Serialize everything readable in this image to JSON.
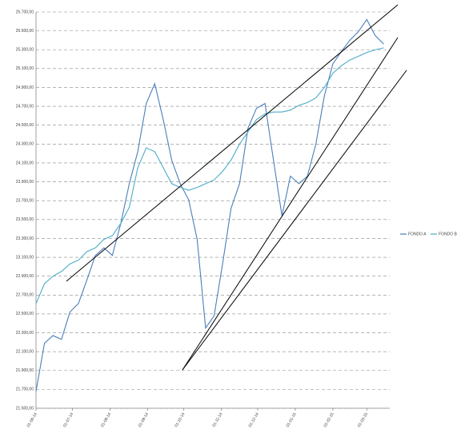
{
  "chart_data": {
    "type": "line",
    "x": [
      "2014-06-01",
      "2014-06-08",
      "2014-06-15",
      "2014-06-22",
      "2014-06-29",
      "2014-07-06",
      "2014-07-13",
      "2014-07-20",
      "2014-07-27",
      "2014-08-03",
      "2014-08-10",
      "2014-08-17",
      "2014-08-24",
      "2014-08-31",
      "2014-09-07",
      "2014-09-14",
      "2014-09-21",
      "2014-09-28",
      "2014-10-05",
      "2014-10-12",
      "2014-10-19",
      "2014-10-26",
      "2014-11-02",
      "2014-11-09",
      "2014-11-16",
      "2014-11-23",
      "2014-11-30",
      "2014-12-07",
      "2014-12-14",
      "2014-12-21",
      "2014-12-28",
      "2015-01-04",
      "2015-01-11",
      "2015-01-18",
      "2015-01-25",
      "2015-02-01",
      "2015-02-08",
      "2015-02-15",
      "2015-02-22",
      "2015-03-01",
      "2015-03-08",
      "2015-03-15"
    ],
    "series": [
      {
        "name": "FONDO A",
        "color": "#4a7ebb",
        "values": [
          21680,
          22190,
          22270,
          22230,
          22520,
          22610,
          22860,
          23120,
          23200,
          23120,
          23460,
          23880,
          24220,
          24730,
          24940,
          24560,
          24130,
          23880,
          23710,
          23290,
          22350,
          22480,
          23030,
          23620,
          23880,
          24470,
          24680,
          24730,
          24130,
          23540,
          23960,
          23880,
          23960,
          24300,
          24810,
          25150,
          25280,
          25400,
          25490,
          25620,
          25450,
          25360
        ]
      },
      {
        "name": "FONDO B",
        "color": "#4bacc6",
        "values": [
          22610,
          22820,
          22900,
          22950,
          23030,
          23070,
          23160,
          23200,
          23290,
          23330,
          23460,
          23630,
          24050,
          24260,
          24220,
          24050,
          23880,
          23840,
          23810,
          23840,
          23880,
          23920,
          24010,
          24130,
          24300,
          24430,
          24560,
          24620,
          24640,
          24640,
          24660,
          24710,
          24740,
          24790,
          24900,
          25050,
          25130,
          25190,
          25230,
          25270,
          25300,
          25320
        ]
      }
    ],
    "xlim": [
      "2014-06-01",
      "2015-03-20"
    ],
    "xticks": [
      {
        "value": "2014-06-01",
        "label": "01-06-14"
      },
      {
        "value": "2014-07-01",
        "label": "01-07-14"
      },
      {
        "value": "2014-08-01",
        "label": "01-08-14"
      },
      {
        "value": "2014-09-01",
        "label": "01-09-14"
      },
      {
        "value": "2014-10-01",
        "label": "01-10-14"
      },
      {
        "value": "2014-11-01",
        "label": "01-11-14"
      },
      {
        "value": "2014-12-01",
        "label": "01-12-14"
      },
      {
        "value": "2015-01-01",
        "label": "01-01-15"
      },
      {
        "value": "2015-02-01",
        "label": "01-02-15"
      },
      {
        "value": "2015-03-01",
        "label": "01-03-15"
      }
    ],
    "ylim": [
      21500,
      25700
    ],
    "yticks": [
      {
        "value": 21500,
        "label": "21.500,00"
      },
      {
        "value": 21700,
        "label": "21.700,00"
      },
      {
        "value": 21900,
        "label": "21.900,00"
      },
      {
        "value": 22100,
        "label": "22.100,00"
      },
      {
        "value": 22300,
        "label": "22.300,00"
      },
      {
        "value": 22500,
        "label": "22.500,00"
      },
      {
        "value": 22700,
        "label": "22.700,00"
      },
      {
        "value": 22900,
        "label": "22.900,00"
      },
      {
        "value": 23100,
        "label": "23.100,00"
      },
      {
        "value": 23300,
        "label": "23.300,00"
      },
      {
        "value": 23500,
        "label": "23.500,00"
      },
      {
        "value": 23700,
        "label": "23.700,00"
      },
      {
        "value": 23900,
        "label": "23.900,00"
      },
      {
        "value": 24100,
        "label": "24.100,00"
      },
      {
        "value": 24300,
        "label": "24.300,00"
      },
      {
        "value": 24500,
        "label": "24.500,00"
      },
      {
        "value": 24700,
        "label": "24.700,00"
      },
      {
        "value": 24900,
        "label": "24.900,00"
      },
      {
        "value": 25100,
        "label": "25.100,00"
      },
      {
        "value": 25300,
        "label": "25.300,00"
      },
      {
        "value": 25500,
        "label": "25.500,00"
      },
      {
        "value": 25700,
        "label": "25.700,00"
      }
    ],
    "grid": true,
    "legend": "right"
  }
}
